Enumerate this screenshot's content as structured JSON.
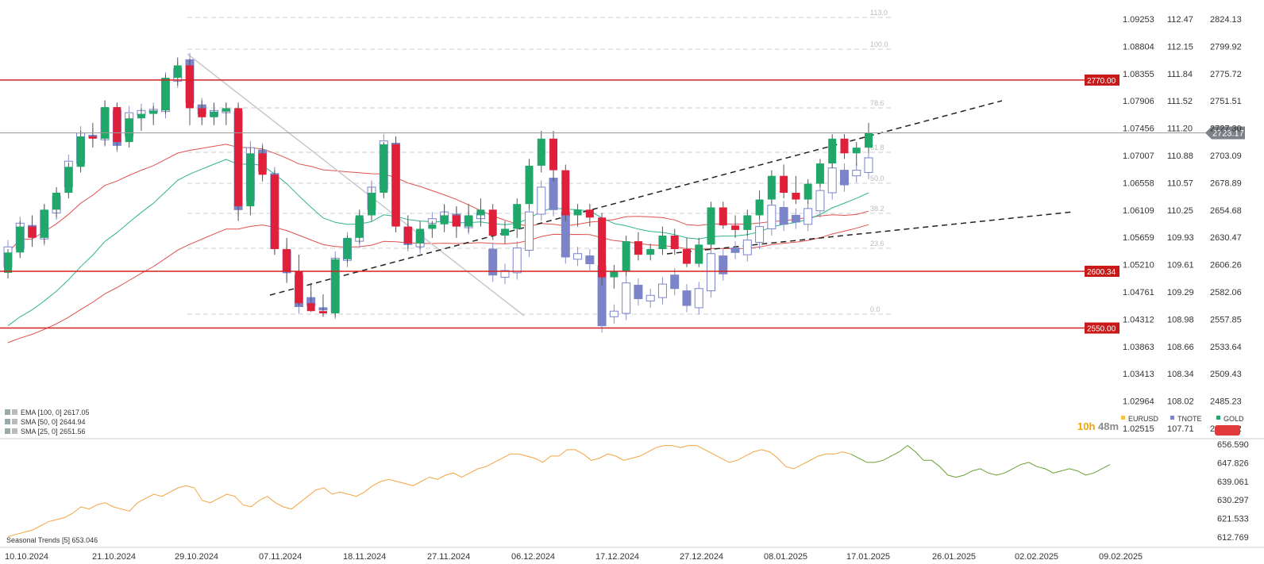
{
  "chart_data": {
    "type": "candlestick",
    "primary_series": "GOLD",
    "current_price_label": "2723.17",
    "price_axis": {
      "GOLD": [
        "2824.13",
        "2799.92",
        "2775.72",
        "2751.51",
        "2727.30",
        "2703.09",
        "2678.89",
        "2654.68",
        "2630.47",
        "2606.26",
        "2582.06",
        "2557.85",
        "2533.64",
        "2509.43",
        "2485.23",
        "2461.02"
      ],
      "TNOTE": [
        "112.47",
        "112.15",
        "111.84",
        "111.52",
        "111.20",
        "110.88",
        "110.57",
        "110.25",
        "109.93",
        "109.61",
        "109.29",
        "108.98",
        "108.66",
        "108.34",
        "108.02",
        "107.71"
      ],
      "EURUSD": [
        "1.09253",
        "1.08804",
        "1.08355",
        "1.07906",
        "1.07456",
        "1.07007",
        "1.06558",
        "1.06109",
        "1.05659",
        "1.05210",
        "1.04761",
        "1.04312",
        "1.03863",
        "1.03413",
        "1.02964",
        "1.02515"
      ]
    },
    "x_tick_labels": [
      "10.10.2024",
      "21.10.2024",
      "29.10.2024",
      "07.11.2024",
      "18.11.2024",
      "27.11.2024",
      "06.12.2024",
      "17.12.2024",
      "27.12.2024",
      "08.01.2025",
      "17.01.2025",
      "26.01.2025",
      "02.02.2025",
      "09.02.2025"
    ],
    "horizontal_levels": [
      "2770.00",
      "2600.34",
      "2550.00"
    ],
    "fib_labels": [
      "113.0",
      "100.0",
      "78.6",
      "61.8",
      "50.0",
      "38.2",
      "23.6",
      "0.0"
    ],
    "legend": [
      {
        "name": "EURUSD",
        "color": "#f5c242"
      },
      {
        "name": "TNOTE",
        "color": "#7b84c9"
      },
      {
        "name": "GOLD",
        "color": "#1fa86a"
      }
    ],
    "indicators": [
      {
        "label": "EMA [100, 0] 2617.05",
        "color": "#2db38a"
      },
      {
        "label": "SMA [50, 0] 2644.94",
        "color": "#e05050"
      },
      {
        "label": "SMA [25, 0] 2651.56",
        "color": "#e05050"
      }
    ],
    "countdown": {
      "hours": "10h",
      "minutes": "48m"
    },
    "gold_candles": [
      [
        "10.10",
        2599,
        2620,
        2594,
        2617
      ],
      [
        "11.10",
        2617,
        2645,
        2612,
        2640
      ],
      [
        "14.10",
        2640,
        2650,
        2622,
        2630
      ],
      [
        "15.10",
        2630,
        2660,
        2625,
        2655
      ],
      [
        "16.10",
        2655,
        2675,
        2648,
        2670
      ],
      [
        "17.10",
        2670,
        2697,
        2665,
        2693
      ],
      [
        "18.10",
        2693,
        2725,
        2688,
        2720
      ],
      [
        "21.10",
        2720,
        2732,
        2710,
        2718
      ],
      [
        "22.10",
        2718,
        2752,
        2712,
        2746
      ],
      [
        "23.10",
        2746,
        2750,
        2708,
        2715
      ],
      [
        "24.10",
        2715,
        2740,
        2710,
        2736
      ],
      [
        "25.10",
        2736,
        2745,
        2725,
        2740
      ],
      [
        "28.10",
        2740,
        2747,
        2730,
        2743
      ],
      [
        "29.10",
        2743,
        2775,
        2740,
        2772
      ],
      [
        "30.10",
        2772,
        2790,
        2765,
        2783
      ],
      [
        "31.10",
        2783,
        2789,
        2730,
        2745
      ],
      [
        "01.11",
        2745,
        2752,
        2730,
        2737
      ],
      [
        "04.11",
        2737,
        2750,
        2730,
        2742
      ],
      [
        "05.11",
        2742,
        2750,
        2730,
        2745
      ],
      [
        "06.11",
        2745,
        2750,
        2645,
        2658
      ],
      [
        "07.11",
        2658,
        2710,
        2650,
        2705
      ],
      [
        "08.11",
        2705,
        2712,
        2680,
        2686
      ],
      [
        "11.11",
        2686,
        2690,
        2615,
        2620
      ],
      [
        "12.11",
        2620,
        2630,
        2590,
        2600
      ],
      [
        "13.11",
        2600,
        2615,
        2570,
        2572
      ],
      [
        "14.11",
        2572,
        2590,
        2565,
        2565
      ],
      [
        "15.11",
        2565,
        2580,
        2560,
        2563
      ],
      [
        "18.11",
        2563,
        2612,
        2560,
        2611
      ],
      [
        "19.11",
        2611,
        2632,
        2608,
        2630
      ],
      [
        "20.11",
        2630,
        2655,
        2625,
        2650
      ],
      [
        "21.11",
        2650,
        2675,
        2645,
        2670
      ],
      [
        "22.11",
        2670,
        2715,
        2665,
        2713
      ],
      [
        "25.11",
        2713,
        2720,
        2635,
        2640
      ],
      [
        "26.11",
        2640,
        2650,
        2620,
        2625
      ],
      [
        "27.11",
        2625,
        2645,
        2620,
        2638
      ],
      [
        "28.11",
        2638,
        2645,
        2630,
        2642
      ],
      [
        "29.11",
        2642,
        2660,
        2635,
        2650
      ],
      [
        "02.12",
        2650,
        2658,
        2630,
        2640
      ],
      [
        "03.12",
        2640,
        2660,
        2635,
        2650
      ],
      [
        "04.12",
        2650,
        2665,
        2640,
        2655
      ],
      [
        "05.12",
        2655,
        2660,
        2628,
        2632
      ],
      [
        "06.12",
        2632,
        2645,
        2625,
        2638
      ],
      [
        "09.12",
        2638,
        2665,
        2630,
        2660
      ],
      [
        "10.12",
        2660,
        2700,
        2655,
        2694
      ],
      [
        "11.12",
        2694,
        2725,
        2688,
        2718
      ],
      [
        "12.12",
        2718,
        2725,
        2680,
        2690
      ],
      [
        "13.12",
        2690,
        2695,
        2645,
        2650
      ],
      [
        "16.12",
        2650,
        2660,
        2640,
        2655
      ],
      [
        "17.12",
        2655,
        2660,
        2640,
        2648
      ],
      [
        "18.12",
        2648,
        2652,
        2588,
        2595
      ],
      [
        "19.12",
        2595,
        2606,
        2585,
        2600
      ],
      [
        "20.12",
        2600,
        2632,
        2596,
        2627
      ],
      [
        "23.12",
        2627,
        2635,
        2610,
        2615
      ],
      [
        "24.12",
        2615,
        2625,
        2610,
        2620
      ],
      [
        "26.12",
        2620,
        2640,
        2615,
        2632
      ],
      [
        "27.12",
        2632,
        2638,
        2615,
        2620
      ],
      [
        "30.12",
        2620,
        2630,
        2604,
        2607
      ],
      [
        "31.12",
        2607,
        2630,
        2604,
        2624
      ],
      [
        "02.01",
        2624,
        2662,
        2620,
        2657
      ],
      [
        "03.01",
        2657,
        2662,
        2638,
        2641
      ],
      [
        "06.01",
        2641,
        2650,
        2630,
        2637
      ],
      [
        "07.01",
        2637,
        2655,
        2632,
        2650
      ],
      [
        "08.01",
        2650,
        2672,
        2646,
        2664
      ],
      [
        "09.01",
        2664,
        2690,
        2660,
        2685
      ],
      [
        "10.01",
        2685,
        2695,
        2665,
        2670
      ],
      [
        "13.01",
        2670,
        2685,
        2660,
        2664
      ],
      [
        "14.01",
        2664,
        2682,
        2660,
        2678
      ],
      [
        "15.01",
        2678,
        2700,
        2675,
        2696
      ],
      [
        "16.01",
        2696,
        2722,
        2692,
        2718
      ],
      [
        "17.01",
        2718,
        2722,
        2700,
        2705
      ],
      [
        "20.01",
        2705,
        2715,
        2694,
        2710
      ],
      [
        "21.01",
        2710,
        2732,
        2705,
        2723
      ]
    ],
    "seasonal_trends": {
      "label": "Seasonal  Trends [5] 653.046",
      "y_axis": [
        "656.590",
        "647.826",
        "639.061",
        "630.297",
        "621.533",
        "612.769"
      ],
      "values": [
        613,
        614,
        615,
        616,
        618,
        620,
        621,
        622,
        624,
        627,
        626,
        628,
        629,
        627,
        626,
        625,
        629,
        631,
        633,
        632,
        634,
        636,
        637,
        636,
        630,
        629,
        631,
        633,
        632,
        628,
        627,
        630,
        632,
        629,
        627,
        626,
        629,
        632,
        635,
        636,
        633,
        634,
        633,
        632,
        634,
        637,
        639,
        640,
        639,
        638,
        637,
        639,
        641,
        640,
        642,
        643,
        641,
        643,
        645,
        646,
        648,
        650,
        652,
        652,
        651,
        650,
        648,
        651,
        651,
        654,
        654,
        652,
        649,
        650,
        652,
        651,
        649,
        650,
        651,
        653,
        655,
        656,
        656,
        655,
        656,
        656,
        654,
        652,
        650,
        648,
        649,
        651,
        653,
        654,
        653,
        650,
        646,
        645,
        647,
        649,
        651,
        652,
        652,
        653,
        652,
        650,
        648,
        648,
        649,
        651,
        653,
        656,
        653,
        649,
        649,
        646,
        642,
        641,
        642,
        644,
        645,
        643,
        642,
        643,
        645,
        647,
        648,
        646,
        645,
        643,
        644,
        645,
        644,
        642,
        643,
        645,
        647
      ]
    }
  }
}
